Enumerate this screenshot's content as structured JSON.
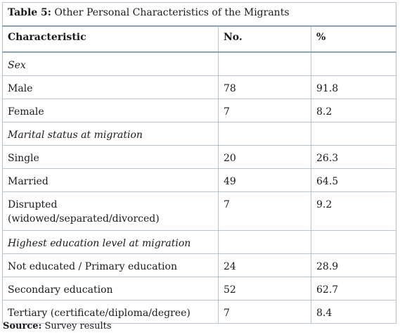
{
  "table": {
    "caption_label": "Table 5:",
    "caption_text": " Other Personal Characteristics of the Migrants",
    "headers": [
      "Characteristic",
      "No.",
      "%"
    ],
    "rows": [
      {
        "type": "category",
        "label": "Sex",
        "no": "",
        "pct": ""
      },
      {
        "type": "data",
        "label": "Male",
        "no": "78",
        "pct": "91.8"
      },
      {
        "type": "data",
        "label": "Female",
        "no": "7",
        "pct": "8.2"
      },
      {
        "type": "category",
        "label": "Marital status at migration",
        "no": "",
        "pct": ""
      },
      {
        "type": "data",
        "label": "Single",
        "no": "20",
        "pct": "26.3"
      },
      {
        "type": "data",
        "label": "Married",
        "no": "49",
        "pct": "64.5"
      },
      {
        "type": "data",
        "label": "Disrupted",
        "label2": "(widowed/separated/divorced)",
        "no": "7",
        "pct": "9.2"
      },
      {
        "type": "category",
        "label": "Highest education level at migration",
        "no": "",
        "pct": ""
      },
      {
        "type": "data",
        "label": "Not educated / Primary education",
        "no": "24",
        "pct": "28.9"
      },
      {
        "type": "data",
        "label": "Secondary education",
        "no": "52",
        "pct": "62.7"
      },
      {
        "type": "data",
        "label": "Tertiary (certificate/diploma/degree)",
        "no": "7",
        "pct": "8.4"
      }
    ]
  },
  "source": {
    "label": "Source:",
    "text": " Survey results"
  }
}
